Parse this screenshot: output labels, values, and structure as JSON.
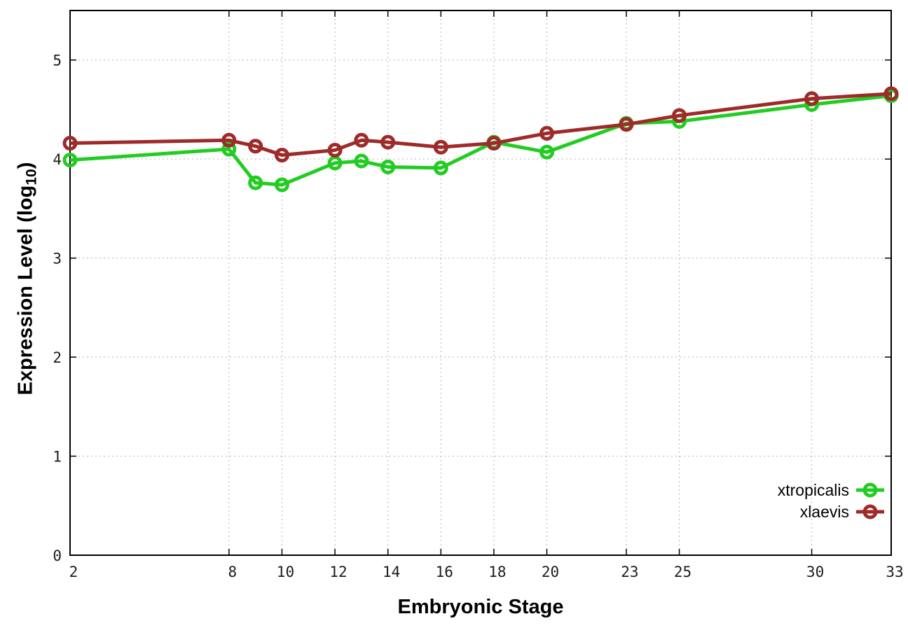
{
  "figure": {
    "background_color": "#ffffff",
    "border_color": "#000000",
    "grid_color": "#b5b5b5",
    "tick_label_color": "#1c1c1c"
  },
  "chart_data": {
    "type": "line",
    "title": "",
    "xlabel": "Embryonic Stage",
    "ylabel_prefix": "Expression Level (log",
    "ylabel_sub": "10",
    "ylabel_suffix": ")",
    "xlim": [
      2,
      33
    ],
    "ylim": [
      0,
      5.5
    ],
    "x_ticks": [
      2,
      8,
      10,
      12,
      14,
      16,
      18,
      20,
      23,
      25,
      30,
      33
    ],
    "y_ticks": [
      0,
      1,
      2,
      3,
      4,
      5
    ],
    "grid": "dotted",
    "legend_position": "inside-right-bottom",
    "x": [
      2,
      8,
      9,
      10,
      12,
      13,
      14,
      16,
      18,
      20,
      23,
      25,
      30,
      33
    ],
    "series": [
      {
        "name": "xtropicalis",
        "color": "#22cc22",
        "marker": "open-circle",
        "values": [
          3.99,
          4.1,
          3.76,
          3.74,
          3.96,
          3.98,
          3.92,
          3.91,
          4.17,
          4.07,
          4.36,
          4.38,
          4.55,
          4.64
        ]
      },
      {
        "name": "xlaevis",
        "color": "#9e2a2a",
        "marker": "open-circle",
        "values": [
          4.16,
          4.19,
          4.13,
          4.04,
          4.09,
          4.19,
          4.17,
          4.12,
          4.16,
          4.26,
          4.35,
          4.44,
          4.61,
          4.66
        ]
      }
    ],
    "styles": {
      "line_width": 5,
      "marker_radius": 8,
      "marker_stroke_width": 5
    }
  }
}
